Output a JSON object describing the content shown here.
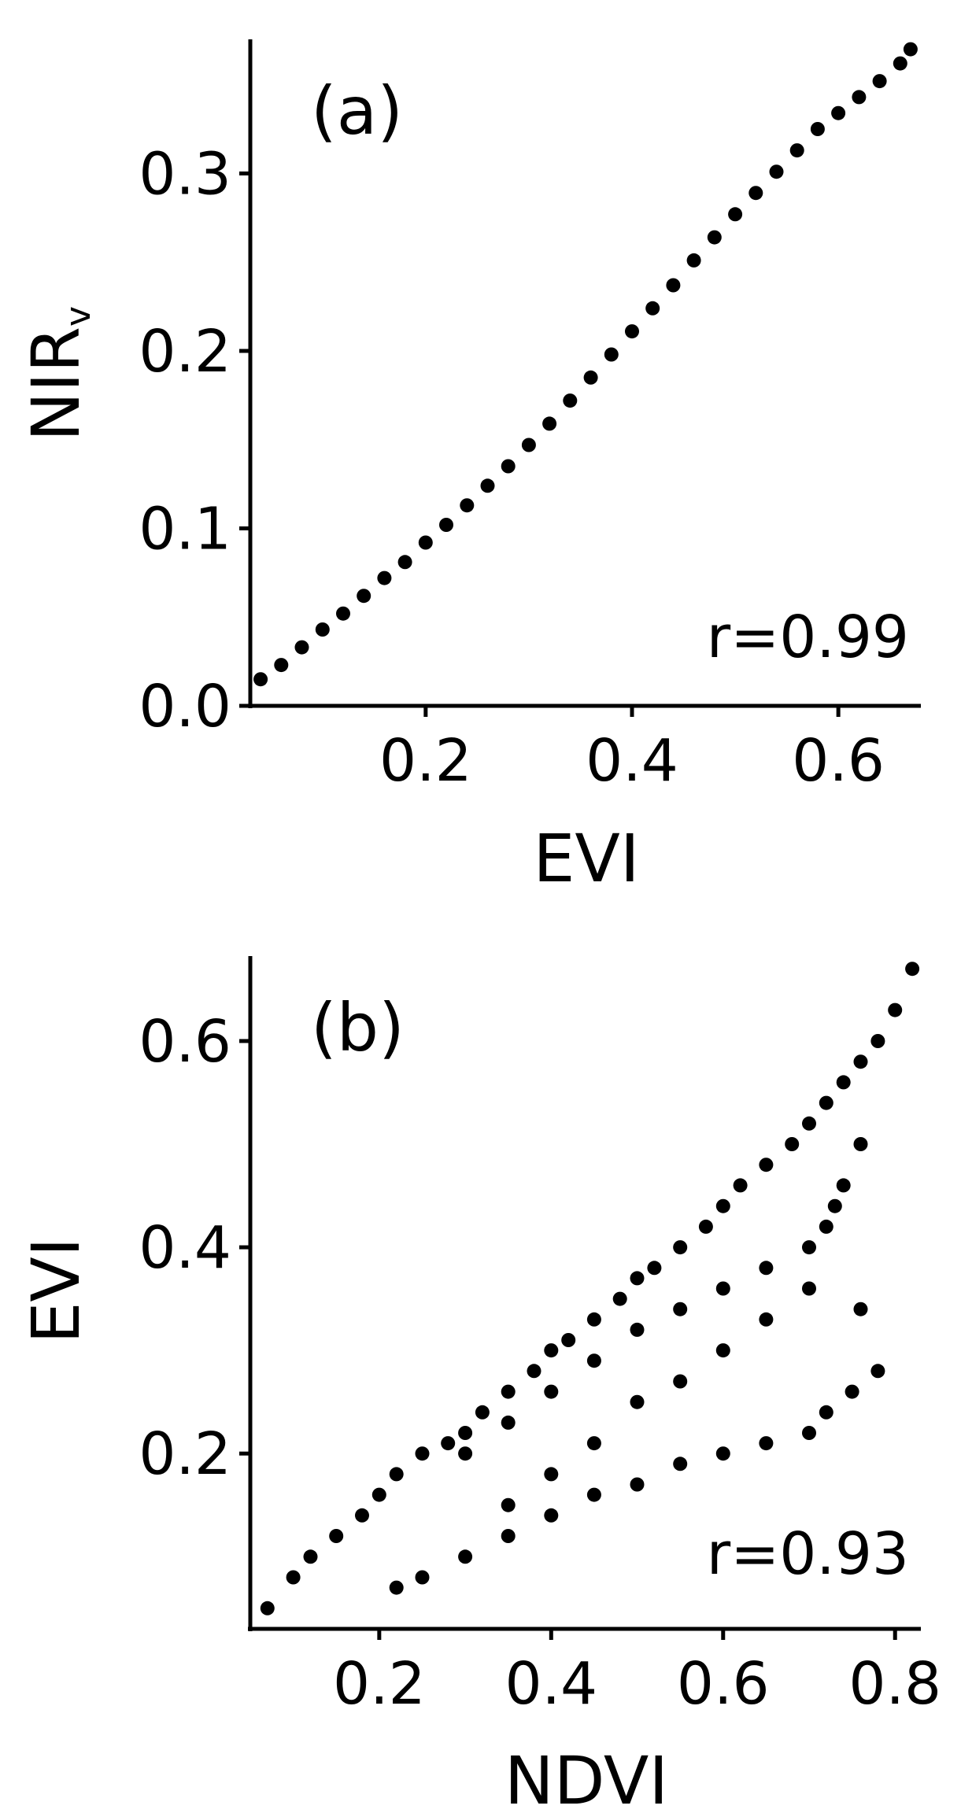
{
  "chart_data": [
    {
      "type": "scatter",
      "panel_label": "(a)",
      "xlabel": "EVI",
      "ylabel": "NIR",
      "ylabel_subscript": "v",
      "annotation": "r=0.99",
      "xlim": [
        0.03,
        0.68
      ],
      "ylim": [
        0.0,
        0.38
      ],
      "xticks": [
        0.2,
        0.4,
        0.6
      ],
      "xtick_labels": [
        "0.2",
        "0.4",
        "0.6"
      ],
      "yticks": [
        0.0,
        0.1,
        0.2,
        0.3
      ],
      "ytick_labels": [
        "0.0",
        "0.1",
        "0.2",
        "0.3"
      ],
      "grid": false,
      "point_color": "#000000",
      "series": [
        {
          "x": [
            0.04,
            0.06,
            0.08,
            0.1,
            0.12,
            0.14,
            0.16,
            0.18,
            0.2,
            0.22,
            0.24,
            0.26,
            0.28,
            0.3,
            0.32,
            0.34,
            0.36,
            0.38,
            0.4,
            0.42,
            0.44,
            0.46,
            0.48,
            0.5,
            0.52,
            0.54,
            0.56,
            0.58,
            0.6,
            0.62,
            0.64,
            0.66,
            0.67
          ],
          "y": [
            0.015,
            0.023,
            0.033,
            0.043,
            0.052,
            0.062,
            0.072,
            0.081,
            0.092,
            0.102,
            0.113,
            0.124,
            0.135,
            0.147,
            0.159,
            0.172,
            0.185,
            0.198,
            0.211,
            0.224,
            0.237,
            0.251,
            0.264,
            0.277,
            0.289,
            0.301,
            0.313,
            0.325,
            0.334,
            0.343,
            0.352,
            0.362,
            0.37
          ]
        }
      ]
    },
    {
      "type": "scatter",
      "panel_label": "(b)",
      "xlabel": "NDVI",
      "ylabel": "EVI",
      "annotation": "r=0.93",
      "xlim": [
        0.05,
        0.83
      ],
      "ylim": [
        0.03,
        0.69
      ],
      "xticks": [
        0.2,
        0.4,
        0.6,
        0.8
      ],
      "xtick_labels": [
        "0.2",
        "0.4",
        "0.6",
        "0.8"
      ],
      "yticks": [
        0.2,
        0.4,
        0.6
      ],
      "ytick_labels": [
        "0.2",
        "0.4",
        "0.6"
      ],
      "grid": false,
      "point_color": "#000000",
      "series": [
        {
          "x": [
            0.07,
            0.1,
            0.12,
            0.15,
            0.18,
            0.2,
            0.22,
            0.25,
            0.28,
            0.3,
            0.32,
            0.35,
            0.38,
            0.4,
            0.42,
            0.45,
            0.48,
            0.5,
            0.52,
            0.55,
            0.58,
            0.6,
            0.62,
            0.65,
            0.68,
            0.7,
            0.72,
            0.74,
            0.76,
            0.78,
            0.8,
            0.82
          ],
          "y": [
            0.05,
            0.08,
            0.1,
            0.12,
            0.14,
            0.16,
            0.18,
            0.2,
            0.21,
            0.22,
            0.24,
            0.26,
            0.28,
            0.3,
            0.31,
            0.33,
            0.35,
            0.37,
            0.38,
            0.4,
            0.42,
            0.44,
            0.46,
            0.48,
            0.5,
            0.52,
            0.54,
            0.56,
            0.58,
            0.6,
            0.63,
            0.67
          ]
        },
        {
          "x": [
            0.22,
            0.25,
            0.3,
            0.35,
            0.4,
            0.45,
            0.5,
            0.55,
            0.6,
            0.65,
            0.7,
            0.72,
            0.75,
            0.78,
            0.3,
            0.35,
            0.4,
            0.45,
            0.5,
            0.55,
            0.6,
            0.65,
            0.7,
            0.73,
            0.76,
            0.55,
            0.6,
            0.65,
            0.7,
            0.72,
            0.74,
            0.76,
            0.5,
            0.45,
            0.4,
            0.35
          ],
          "y": [
            0.07,
            0.08,
            0.1,
            0.12,
            0.14,
            0.16,
            0.17,
            0.19,
            0.2,
            0.21,
            0.22,
            0.24,
            0.26,
            0.28,
            0.2,
            0.23,
            0.26,
            0.29,
            0.32,
            0.34,
            0.36,
            0.38,
            0.4,
            0.44,
            0.5,
            0.27,
            0.3,
            0.33,
            0.36,
            0.42,
            0.46,
            0.34,
            0.25,
            0.21,
            0.18,
            0.15
          ]
        }
      ]
    }
  ]
}
